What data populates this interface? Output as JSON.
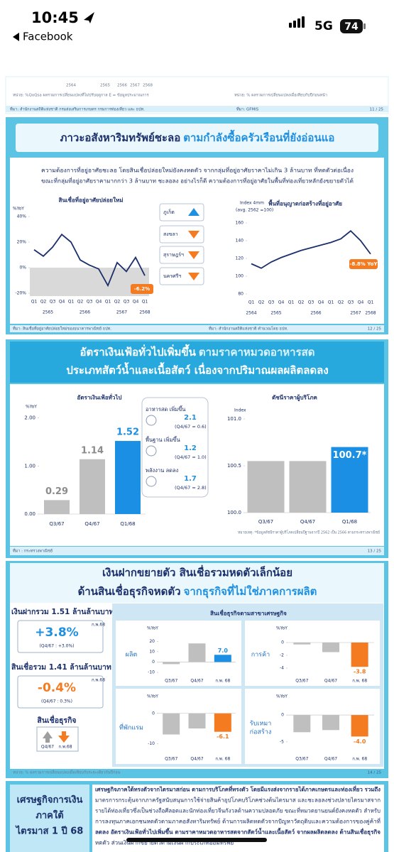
{
  "status_bar": {
    "time": "10:45",
    "back_label": "Facebook",
    "network": "5G",
    "battery": "74"
  },
  "slide_11": {
    "year_labels": [
      "2564",
      "2565",
      "2566",
      "2567",
      "2568"
    ],
    "note_left": "หน่วย: %QoQsa ผลรวมการเปลี่ยนแปลงที่ไม่ปรับฤดูกาล E = ข้อมูลประมาณการ",
    "note_right": "หน่วย: % ผลรวมการเปลี่ยนแปลงเมื่อเทียบกับปีก่อนหน้า",
    "source_left": "ที่มา: สำนักงานสถิติแห่งชาติ กรมส่งเสริมการเกษตร กรมการท่องเที่ยว และ ธปท.",
    "source_right": "ที่มา: GFMIS",
    "page": "11 / 25"
  },
  "slide_12": {
    "title_main": "ภาวะอสังหาริมทรัพย์ชะลอ",
    "title_accent": "ตามกำลังซื้อครัวเรือนที่ยังอ่อนแอ",
    "description": [
      "ความต้องการที่อยู่อาศัยชะลอ โดยสินเชื่อปล่อยใหม่ยังคงหดตัว จากกลุ่มที่อยู่อาศัยราคาไม่เกิน 3 ล้านบาท ที่หดตัวต่อเนื่อง",
      "ขณะที่กลุ่มที่อยู่อาศัยราคามากกว่า 3 ล้านบาท ชะลอลง อย่างไรก็ดี ความต้องการที่อยู่อาศัยในพื้นที่ท่องเที่ยวหลักยังขยายตัวได้"
    ],
    "housing_loans": {
      "type": "line",
      "title": "สินเชื่อที่อยู่อาศัยปล่อยใหม่",
      "y_label": "%YoY",
      "categories": [
        "Q1",
        "Q2",
        "Q3",
        "Q4",
        "Q1",
        "Q2",
        "Q3",
        "Q4",
        "Q1",
        "Q2",
        "Q3",
        "Q4",
        "Q1"
      ],
      "year_labels": [
        "2565",
        "2566",
        "2567",
        "2568"
      ],
      "values": [
        14,
        9,
        16,
        26,
        20,
        6,
        2,
        -1,
        -14,
        4,
        -3,
        8,
        -6.2
      ],
      "last_label": "-6.2%",
      "color": "#1b2f6b",
      "ylim": [
        -20,
        40
      ],
      "yticks": [
        {
          "value": 40,
          "label": "40%"
        },
        {
          "value": 20,
          "label": "20%"
        },
        {
          "value": 0,
          "label": "0%"
        },
        {
          "value": -20,
          "label": "-20%"
        }
      ]
    },
    "provinces": [
      {
        "name": "ภูเก็ต",
        "trend": "up"
      },
      {
        "name": "สงขลา",
        "trend": "down"
      },
      {
        "name": "สุราษฎร์ฯ",
        "trend": "down"
      },
      {
        "name": "นครศรีฯ",
        "trend": "down"
      }
    ],
    "construction_permits": {
      "type": "line",
      "title": "พื้นที่อนุญาตก่อสร้างที่อยู่อาศัย",
      "y_label": "Index 4mm",
      "subtitle": "(avg. 2562 =100)",
      "categories": [
        "Q1",
        "Q2",
        "Q3",
        "Q4",
        "Q1",
        "Q2",
        "Q3",
        "Q4",
        "Q1",
        "Q2",
        "Q3",
        "Q4",
        "Q1"
      ],
      "year_labels": [
        "2564",
        "2565",
        "2566",
        "2567",
        "2568"
      ],
      "values": [
        114,
        109,
        116,
        121,
        125,
        129,
        132,
        135,
        138,
        142,
        151,
        140,
        125
      ],
      "last_label": "-8.8% YoY",
      "color": "#1b2f6b",
      "ylim": [
        80,
        160
      ],
      "yticks": [
        160,
        140,
        120,
        100,
        80
      ]
    },
    "source_left": "ที่มา: สินเชื่อที่อยู่อาศัยปล่อยใหม่ของธนาคารพาณิชย์ ธปท.",
    "source_right": "ที่มา: สำนักงานสถิติแห่งชาติ คำนวณโดย ธปท.",
    "page": "12 / 25"
  },
  "slide_13": {
    "title_line1": "อัตราเงินเฟ้อทั่วไปเพิ่มขึ้น",
    "title_line1_accent": "ตามราคาหมวดอาหารสด",
    "title_line2": "ประเภทสัตว์น้ำและเนื้อสัตว์ เนื่องจากปริมาณผลผลิตลดลง",
    "inflation": {
      "type": "bar",
      "title": "อัตราเงินเฟ้อทั่วไป",
      "y_label": "%YoY",
      "categories": [
        "Q3/67",
        "Q4/67",
        "Q1/68"
      ],
      "values": [
        0.29,
        1.14,
        1.52
      ],
      "colors": [
        "#bfbfbf",
        "#bfbfbf",
        "#1a8fe3"
      ],
      "label_colors": [
        "#8c8c8c",
        "#8c8c8c",
        "#1a8fe3"
      ],
      "ylim": [
        0,
        2.2
      ],
      "yticks": [
        {
          "value": 0,
          "label": "0.00"
        },
        {
          "value": 1,
          "label": "1.00"
        },
        {
          "value": 2,
          "label": "2.00"
        }
      ]
    },
    "components": [
      {
        "label": "อาหารสด เพิ่มขึ้น",
        "value": 2.1,
        "note": "(Q4/67 = 0.6)"
      },
      {
        "label": "พื้นฐาน เพิ่มขึ้น",
        "value": 1.2,
        "note": "(Q4/67 = 1.0)"
      },
      {
        "label": "พลังงาน ลดลง",
        "value": 1.7,
        "note": "(Q4/67 = 2.8)"
      }
    ],
    "cpi": {
      "type": "bar",
      "title": "ดัชนีราคาผู้บริโภค",
      "y_label": "Index",
      "categories": [
        "Q3/67",
        "Q4/67",
        "Q1/68"
      ],
      "values": [
        100.55,
        100.55,
        100.7
      ],
      "last_label": "100.7*",
      "colors": [
        "#bfbfbf",
        "#bfbfbf",
        "#1a8fe3"
      ],
      "ylim": [
        100,
        101
      ],
      "yticks": [
        {
          "value": 100,
          "label": "100.0"
        },
        100.5,
        {
          "value": 101,
          "label": "101.0"
        }
      ]
    },
    "note": "หมายเหตุ: *ข้อมูลดัชนีราคาผู้บริโภคเปลี่ยนปีฐานจากปี 2562 เป็น 2566 ตามกระทรวงพาณิชย์",
    "source": "ที่มา : กระทรวงพาณิชย์",
    "page": "13 / 25"
  },
  "slide_14": {
    "title_line1": "เงินฝากขยายตัว สินเชื่อรวมหดตัวเล็กน้อย",
    "title_line2": "ด้านสินเชื่อธุรกิจหดตัว",
    "title_line2_accent": "จากธุรกิจที่ไม่ใช่ภาคการผลิต",
    "deposits": {
      "heading": "เงินฝากรวม 1.51 ล้านล้านบาท",
      "growth": "+3.8%",
      "period": "ก.พ.68",
      "previous": "(Q4/67 : +3.0%)"
    },
    "loans": {
      "heading": "สินเชื่อรวม 1.41 ล้านล้านบาท",
      "growth": "-0.4%",
      "period": "ก.พ.68",
      "previous": "(Q4/67 : 0.3%)"
    },
    "business_loans": {
      "heading": "สินเชื่อธุรกิจ",
      "legend": [
        "Q4/67",
        "ก.พ.68"
      ]
    },
    "sector_title": "สินเชื่อธุรกิจตามสาขาเศรษฐกิจ",
    "sectors": [
      {
        "type": "bar",
        "name": [
          "ผลิต"
        ],
        "y_label": "%YoY",
        "categories": [
          "Q3/67",
          "Q4/67",
          "ก.พ. 68"
        ],
        "values": [
          -2,
          18,
          7
        ],
        "last_label": "7.0",
        "colors": [
          "#bfbfbf",
          "#bfbfbf",
          "#1a8fe3"
        ],
        "ylim": [
          -12,
          25
        ],
        "yticks": [
          20,
          10,
          0,
          -10
        ]
      },
      {
        "type": "bar",
        "name": [
          "การค้า"
        ],
        "y_label": "%YoY",
        "categories": [
          "Q3/67",
          "Q4/67",
          "ก.พ. 68"
        ],
        "values": [
          -0.3,
          -1.5,
          -3.8
        ],
        "last_label": "-3.8",
        "colors": [
          "#bfbfbf",
          "#bfbfbf",
          "#f47b20"
        ],
        "ylim": [
          -5,
          1
        ],
        "yticks": [
          0,
          -2,
          -4
        ]
      },
      {
        "type": "bar",
        "name": [
          "ที่พักแรม"
        ],
        "y_label": "%YoY",
        "categories": [
          "Q3/67",
          "Q4/67",
          "ก.พ. 68"
        ],
        "values": [
          -7,
          -5,
          -6.1
        ],
        "last_label": "-6.1",
        "colors": [
          "#bfbfbf",
          "#bfbfbf",
          "#f47b20"
        ],
        "ylim": [
          -13,
          3
        ],
        "yticks": [
          0,
          -10
        ]
      },
      {
        "type": "bar",
        "name": [
          "รับเหมา",
          "ก่อสร้าง"
        ],
        "y_label": "%YoY",
        "categories": [
          "Q3/67",
          "Q4/67",
          "ก.พ. 68"
        ],
        "values": [
          -3.2,
          -2.8,
          -4
        ],
        "last_label": "-4.0",
        "colors": [
          "#bfbfbf",
          "#bfbfbf",
          "#f47b20"
        ],
        "ylim": [
          -7,
          2
        ],
        "yticks": [
          0,
          -5
        ]
      }
    ],
    "note": "หน่วย: % ผลรวมการเปลี่ยนแปลงเมื่อเทียบกับระยะเดียวกันปีก่อน",
    "page": "14 / 25"
  },
  "slide_15": {
    "side_title": [
      "เศรษฐกิจการเงิน",
      "ภาคใต้",
      "ไตรมาส 1 ปี 68"
    ],
    "paragraph": [
      "เศรษฐกิจภาคใต้ทรงตัวจากไตรมาสก่อน ตามการบริโภคที่ทรงตัว โดยมีแรงส่งจากรายได้ภาคเกษตรและท่องเที่ยว รวมถึง",
      "มาตรการกระตุ้นจากภาครัฐสนับสนุนการใช้จ่ายสินค้าอุปโภคบริโภคช่วงต้นไตรมาส และชะลอลงช่วงปลายไตรมาสจาก",
      "รายได้ท่องเที่ยวซึ่งเป็นช่วงถือศีลอดและนักท่องเที่ยวจีนกังวลด้านความปลอดภัย ขณะที่หมวดยานยนต์ยังคงหดตัว สำหรับ",
      "การลงทุนภาคเอกชนหดตัวตามภาคอสังหาริมทรัพย์ ด้านการผลิตหดตัวจากปัญหาวัตถุดิบและความต้องการของคู่ค้าที่",
      "ลดลง อัตราเงินเฟ้อทั่วไปเพิ่มขึ้น ตามราคาหมวดอาหารสดจากสัตว์น้ำและเนื้อสัตว์ จากผลผลิตลดลง ด้านสินเชื่อธุรกิจ",
      "หดตัว ส่วนเงินฝากขยายตัวตามเงินฝากประเภทออมทรัพย์"
    ]
  }
}
